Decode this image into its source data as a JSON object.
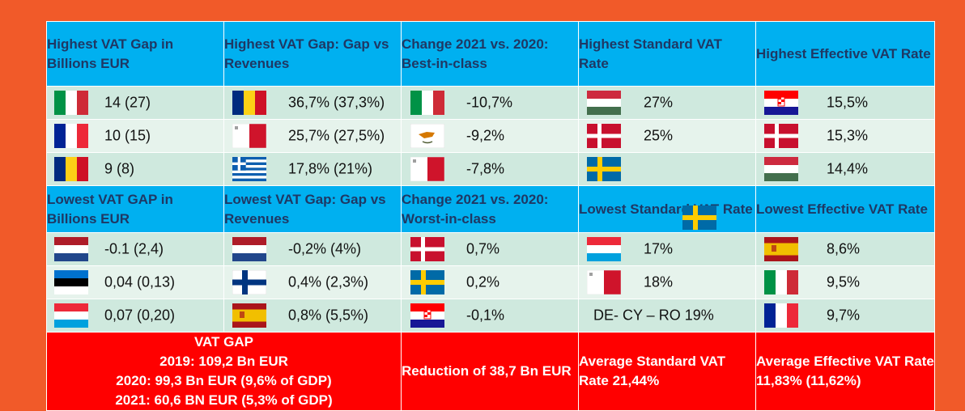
{
  "headers_top": [
    "Highest VAT Gap in Billions EUR",
    "Highest VAT Gap: Gap vs Revenues",
    "Change 2021 vs. 2020: Best-in-class",
    "Highest Standard VAT Rate",
    "Highest Effective VAT Rate"
  ],
  "rows_top": [
    [
      {
        "flag": "italy-flag",
        "value": "14 (27)"
      },
      {
        "flag": "romania-flag",
        "value": "36,7% (37,3%)"
      },
      {
        "flag": "italy-flag",
        "value": "-10,7%"
      },
      {
        "flag": "hungary-flag",
        "value": "27%"
      },
      {
        "flag": "croatia-flag",
        "value": "15,5%"
      }
    ],
    [
      {
        "flag": "france-flag",
        "value": "10 (15)"
      },
      {
        "flag": "malta-flag",
        "value": "25,7% (27,5%)"
      },
      {
        "flag": "cyprus-flag",
        "value": "-9,2%"
      },
      {
        "flag": "denmark-flag",
        "value": "25%"
      },
      {
        "flag": "denmark-flag",
        "value": "15,3%"
      }
    ],
    [
      {
        "flag": "romania-flag",
        "value": "9 (8)"
      },
      {
        "flag": "greece-flag",
        "value": "17,8% (21%)"
      },
      {
        "flag": "malta-flag",
        "value": "-7,8%"
      },
      {
        "flag": "sweden-flag",
        "value": ""
      },
      {
        "flag": "hungary-flag",
        "value": "14,4%"
      }
    ]
  ],
  "headers_bottom": [
    "Lowest VAT GAP in Billions EUR",
    "Lowest VAT Gap: Gap vs Revenues",
    "Change 2021 vs. 2020: Worst-in-class",
    "Lowest Standard VAT Rate",
    "Lowest Effective VAT Rate"
  ],
  "rows_bottom": [
    [
      {
        "flag": "netherlands-flag",
        "value": "-0.1 (2,4)"
      },
      {
        "flag": "netherlands-flag",
        "value": "-0,2% (4%)"
      },
      {
        "flag": "denmark-flag",
        "value": "0,7%"
      },
      {
        "flag": "luxembourg-flag",
        "value": "17%"
      },
      {
        "flag": "spain-flag",
        "value": "8,6%"
      }
    ],
    [
      {
        "flag": "estonia-flag",
        "value": "0,04 (0,13)"
      },
      {
        "flag": "finland-flag",
        "value": "0,4% (2,3%)"
      },
      {
        "flag": "sweden-flag",
        "value": "0,2%"
      },
      {
        "flag": "malta-flag",
        "value": "18%"
      },
      {
        "flag": "italy-flag",
        "value": "9,5%"
      }
    ],
    [
      {
        "flag": "luxembourg-flag",
        "value": "0,07 (0,20)"
      },
      {
        "flag": "spain-flag",
        "value": "0,8% (5,5%)"
      },
      {
        "flag": "croatia-flag",
        "value": "-0,1%"
      },
      {
        "flag": "",
        "value": "DE- CY – RO 19%"
      },
      {
        "flag": "france-flag",
        "value": "9,7%"
      }
    ]
  ],
  "footer": {
    "vat_gap_title": "VAT GAP",
    "vat_gap_2019": "2019: 109,2 Bn EUR",
    "vat_gap_2020": "2020: 99,3 Bn EUR (9,6% of GDP)",
    "vat_gap_2021": "2021: 60,6 BN EUR (5,3% of GDP)",
    "reduction": "Reduction of 38,7 Bn EUR",
    "avg_standard": "Average Standard VAT Rate 21,44%",
    "avg_effective": "Average Effective VAT Rate 11,83% (11,62%)"
  },
  "header_overlay_flag": "sweden-flag",
  "colors": {
    "background": "#f15a29",
    "header": "#00b0f0",
    "header_text": "#1f3864",
    "row_odd": "#cfe9de",
    "row_even": "#e6f3ec",
    "footer": "#ff0000"
  }
}
